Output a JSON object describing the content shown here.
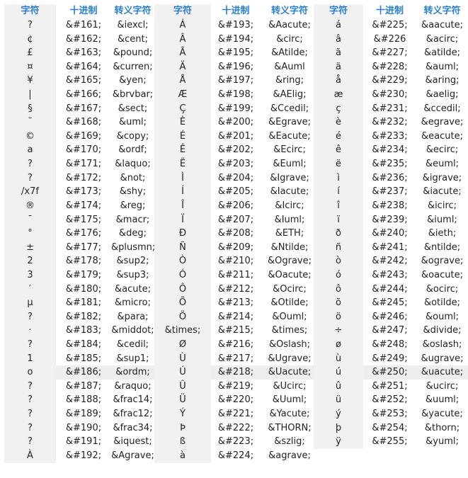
{
  "headers": [
    "字符",
    "十进制",
    "转义字符"
  ],
  "groups": [
    {
      "rows": [
        [
          "?",
          "&#161;",
          "&iexcl;"
        ],
        [
          "¢",
          "&#162;",
          "&cent;"
        ],
        [
          "£",
          "&#163;",
          "&pound;"
        ],
        [
          "¤",
          "&#164;",
          "&curren;"
        ],
        [
          "¥",
          "&#165;",
          "&yen;"
        ],
        [
          "|",
          "&#166;",
          "&brvbar;"
        ],
        [
          "§",
          "&#167;",
          "&sect;"
        ],
        [
          "¨",
          "&#168;",
          "&uml;"
        ],
        [
          "©",
          "&#169;",
          "&copy;"
        ],
        [
          "a",
          "&#170;",
          "&ordf;"
        ],
        [
          "?",
          "&#171;",
          "&laquo;"
        ],
        [
          "?",
          "&#172;",
          "&not;"
        ],
        [
          "/x7f",
          "&#173;",
          "&shy;"
        ],
        [
          "®",
          "&#174;",
          "&reg;"
        ],
        [
          "¯",
          "&#175;",
          "&macr;"
        ],
        [
          "°",
          "&#176;",
          "&deg;"
        ],
        [
          "±",
          "&#177;",
          "&plusmn;"
        ],
        [
          "2",
          "&#178;",
          "&sup2;"
        ],
        [
          "3",
          "&#179;",
          "&sup3;"
        ],
        [
          "′",
          "&#180;",
          "&acute;"
        ],
        [
          "µ",
          "&#181;",
          "&micro;"
        ],
        [
          "?",
          "&#182;",
          "&para;"
        ],
        [
          "·",
          "&#183;",
          "&middot;"
        ],
        [
          "?",
          "&#184;",
          "&cedil;"
        ],
        [
          "1",
          "&#185;",
          "&sup1;"
        ],
        [
          "o",
          "&#186;",
          "&ordm;"
        ],
        [
          "?",
          "&#187;",
          "&raquo;"
        ],
        [
          "?",
          "&#188;",
          "&frac14;"
        ],
        [
          "?",
          "&#189;",
          "&frac12;"
        ],
        [
          "?",
          "&#190;",
          "&frac34;"
        ],
        [
          "?",
          "&#191;",
          "&iquest;"
        ],
        [
          "À",
          "&#192;",
          "&Agrave;"
        ]
      ]
    },
    {
      "rows": [
        [
          "Á",
          "&#193;",
          "&Aacute;"
        ],
        [
          "Â",
          "&#194;",
          "&circ;"
        ],
        [
          "Ã",
          "&#195;",
          "&Atilde;"
        ],
        [
          "Ä",
          "&#196;",
          "&Auml"
        ],
        [
          "Å",
          "&#197;",
          "&ring;"
        ],
        [
          "Æ",
          "&#198;",
          "&AElig;"
        ],
        [
          "Ç",
          "&#199;",
          "&Ccedil;"
        ],
        [
          "È",
          "&#200;",
          "&Egrave;"
        ],
        [
          "É",
          "&#201;",
          "&Eacute;"
        ],
        [
          "Ê",
          "&#202;",
          "&Ecirc;"
        ],
        [
          "Ë",
          "&#203;",
          "&Euml;"
        ],
        [
          "Ì",
          "&#204;",
          "&Igrave;"
        ],
        [
          "Í",
          "&#205;",
          "&Iacute;"
        ],
        [
          "Î",
          "&#206;",
          "&Icirc;"
        ],
        [
          "Ï",
          "&#207;",
          "&Iuml;"
        ],
        [
          "Ð",
          "&#208;",
          "&ETH;"
        ],
        [
          "Ñ",
          "&#209;",
          "&Ntilde;"
        ],
        [
          "Ò",
          "&#210;",
          "&Ograve;"
        ],
        [
          "Ó",
          "&#211;",
          "&Oacute;"
        ],
        [
          "Ô",
          "&#212;",
          "&Ocirc;"
        ],
        [
          "Õ",
          "&#213;",
          "&Otilde;"
        ],
        [
          "Ö",
          "&#214;",
          "&Ouml;"
        ],
        [
          "&times;",
          "&#215;",
          "&times;"
        ],
        [
          "Ø",
          "&#216;",
          "&Oslash;"
        ],
        [
          "Ù",
          "&#217;",
          "&Ugrave;"
        ],
        [
          "Ú",
          "&#218;",
          "&Uacute;"
        ],
        [
          "Û",
          "&#219;",
          "&Ucirc;"
        ],
        [
          "Ü",
          "&#220;",
          "&Uuml;"
        ],
        [
          "Ý",
          "&#221;",
          "&Yacute;"
        ],
        [
          "Þ",
          "&#222;",
          "&THORN;"
        ],
        [
          "ß",
          "&#223;",
          "&szlig;"
        ],
        [
          "à",
          "&#224;",
          "&agrave;"
        ]
      ]
    },
    {
      "rows": [
        [
          "á",
          "&#225;",
          "&aacute;"
        ],
        [
          "â",
          "&#226",
          "&acirc;"
        ],
        [
          "ã",
          "&#227;",
          "&atilde;"
        ],
        [
          "ä",
          "&#228;",
          "&auml;"
        ],
        [
          "å",
          "&#229;",
          "&aring;"
        ],
        [
          "æ",
          "&#230;",
          "&aelig;"
        ],
        [
          "ç",
          "&#231;",
          "&ccedil;"
        ],
        [
          "è",
          "&#232;",
          "&egrave;"
        ],
        [
          "é",
          "&#233;",
          "&eacute;"
        ],
        [
          "ê",
          "&#234;",
          "&ecirc;"
        ],
        [
          "ë",
          "&#235;",
          "&euml;"
        ],
        [
          "ì",
          "&#236;",
          "&igrave;"
        ],
        [
          "í",
          "&#237;",
          "&iacute;"
        ],
        [
          "î",
          "&#238;",
          "&icirc;"
        ],
        [
          "ï",
          "&#239;",
          "&iuml;"
        ],
        [
          "ð",
          "&#240;",
          "&ieth;"
        ],
        [
          "ñ",
          "&#241;",
          "&ntilde;"
        ],
        [
          "ò",
          "&#242;",
          "&ograve;"
        ],
        [
          "ó",
          "&#243;",
          "&oacute;"
        ],
        [
          "ô",
          "&#244;",
          "&ocirc;"
        ],
        [
          "õ",
          "&#245;",
          "&otilde;"
        ],
        [
          "ö",
          "&#246;",
          "&ouml;"
        ],
        [
          "÷",
          "&#247;",
          "&divide;"
        ],
        [
          "ø",
          "&#248;",
          "&oslash;"
        ],
        [
          "ù",
          "&#249;",
          "&ugrave;"
        ],
        [
          "ú",
          "&#250;",
          "&uacute;"
        ],
        [
          "û",
          "&#251;",
          "&ucirc;"
        ],
        [
          "ü",
          "&#252;",
          "&uuml;"
        ],
        [
          "ý",
          "&#253;",
          "&yacute;"
        ],
        [
          "þ",
          "&#254;",
          "&thorn;"
        ],
        [
          "ÿ",
          "&#255;",
          "&yuml;"
        ]
      ]
    }
  ]
}
